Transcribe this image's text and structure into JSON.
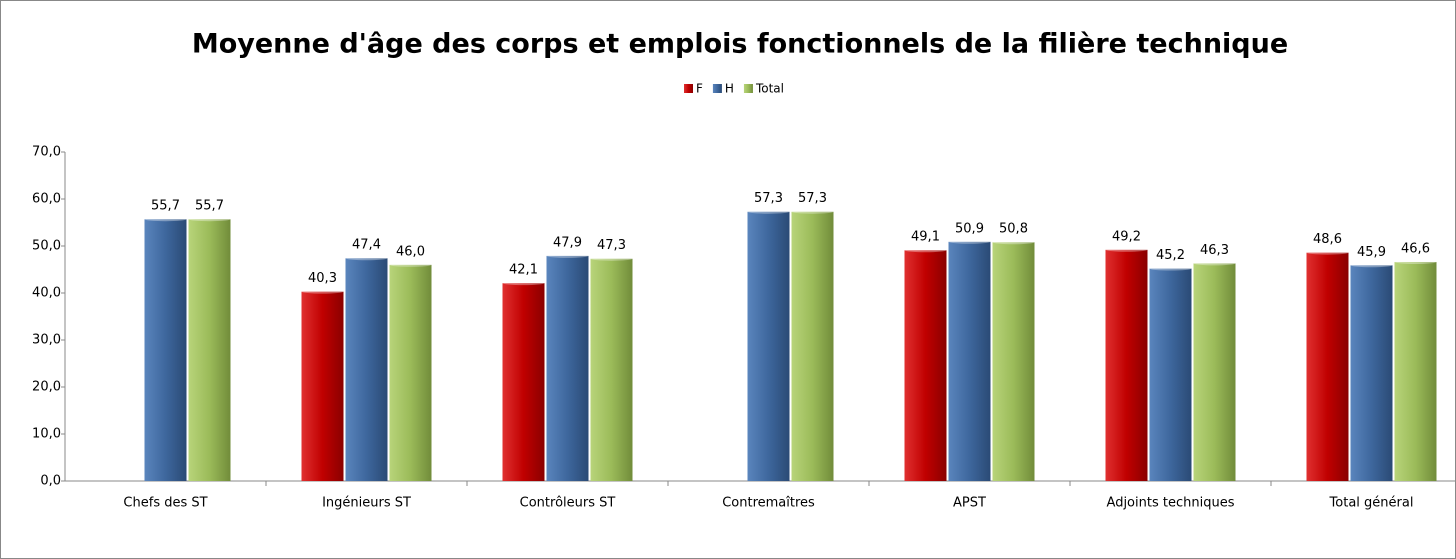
{
  "chart_data": {
    "type": "bar",
    "title": "Moyenne d'âge des corps et emplois fonctionnels de la filière technique",
    "categories": [
      "Chefs des ST",
      "Ingénieurs ST",
      "Contrôleurs ST",
      "Contremaîtres",
      "APST",
      "Adjoints techniques",
      "Total général"
    ],
    "series": [
      {
        "name": "F",
        "color": "#c00000",
        "values": [
          null,
          40.3,
          42.1,
          null,
          49.1,
          49.2,
          48.6
        ],
        "value_labels": [
          null,
          "40,3",
          "42,1",
          null,
          "49,1",
          "49,2",
          "48,6"
        ]
      },
      {
        "name": "H",
        "color": "#3e679d",
        "values": [
          55.7,
          47.4,
          47.9,
          57.3,
          50.9,
          45.2,
          45.9
        ],
        "value_labels": [
          "55,7",
          "47,4",
          "47,9",
          "57,3",
          "50,9",
          "45,2",
          "45,9"
        ]
      },
      {
        "name": "Total",
        "color": "#9bbb59",
        "values": [
          55.7,
          46.0,
          47.3,
          57.3,
          50.8,
          46.3,
          46.6
        ],
        "value_labels": [
          "55,7",
          "46,0",
          "47,3",
          "57,3",
          "50,8",
          "46,3",
          "46,6"
        ]
      }
    ],
    "ylim": [
      0,
      70
    ],
    "yticks": [
      {
        "value": 0,
        "label": "0,0"
      },
      {
        "value": 10,
        "label": "10,0"
      },
      {
        "value": 20,
        "label": "20,0"
      },
      {
        "value": 30,
        "label": "30,0"
      },
      {
        "value": 40,
        "label": "40,0"
      },
      {
        "value": 50,
        "label": "50,0"
      },
      {
        "value": 60,
        "label": "60,0"
      },
      {
        "value": 70,
        "label": "70,0"
      }
    ],
    "grid": false,
    "legend": "top"
  }
}
